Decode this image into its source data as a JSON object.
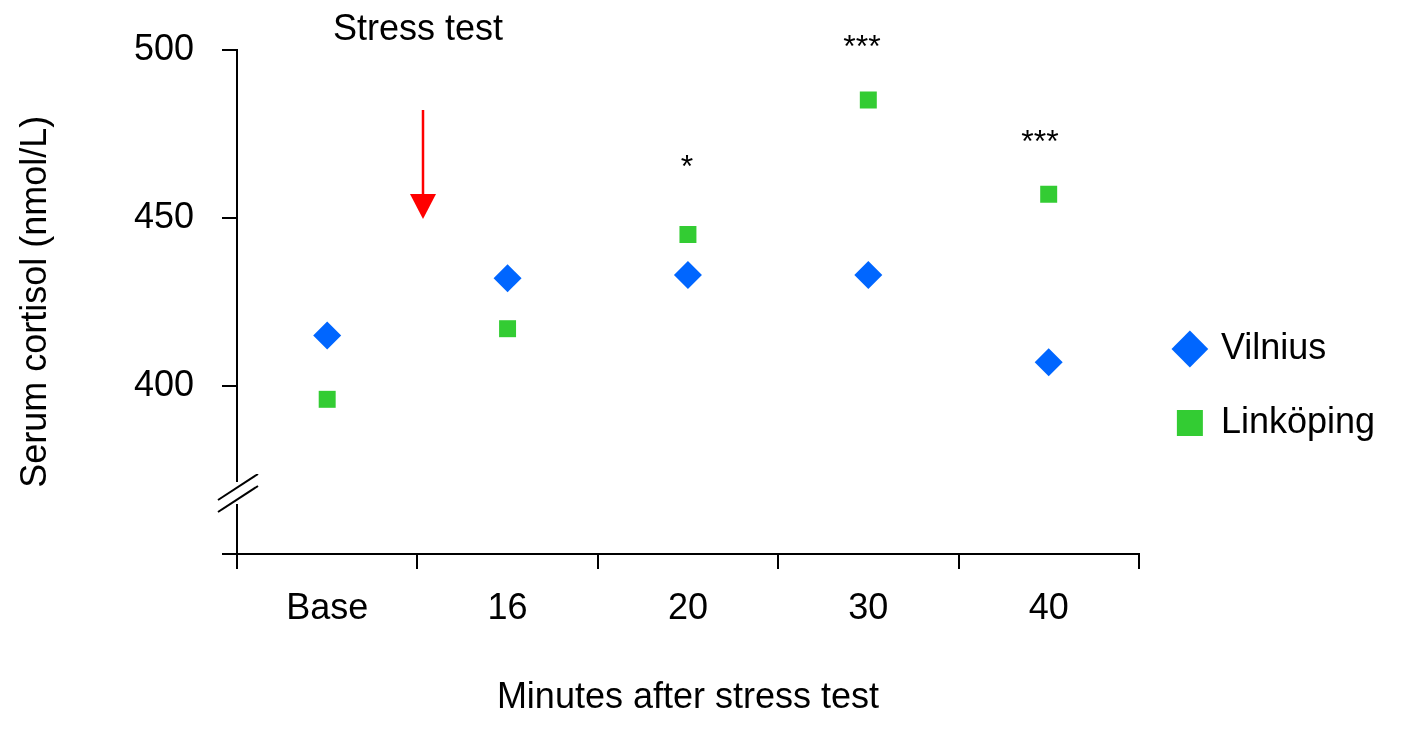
{
  "chart_data": {
    "type": "scatter",
    "xlabel": "Minutes after stress test",
    "ylabel": "Serum cortisol (nmol/L)",
    "categories": [
      "Base",
      "16",
      "20",
      "30",
      "40"
    ],
    "series": [
      {
        "name": "Vilnius",
        "color": "#0066ff",
        "marker": "diamond",
        "values": [
          415,
          432,
          433,
          433,
          407
        ]
      },
      {
        "name": "Linköping",
        "color": "#33cc33",
        "marker": "square",
        "values": [
          396,
          417,
          445,
          485,
          457
        ]
      }
    ],
    "ylim": [
      350,
      500
    ],
    "yticks": [
      {
        "value": 350,
        "label": null
      },
      400,
      450,
      500
    ],
    "grid": false,
    "legend": "right",
    "annotations": [
      "Stress test",
      "*",
      "***",
      "***"
    ]
  }
}
